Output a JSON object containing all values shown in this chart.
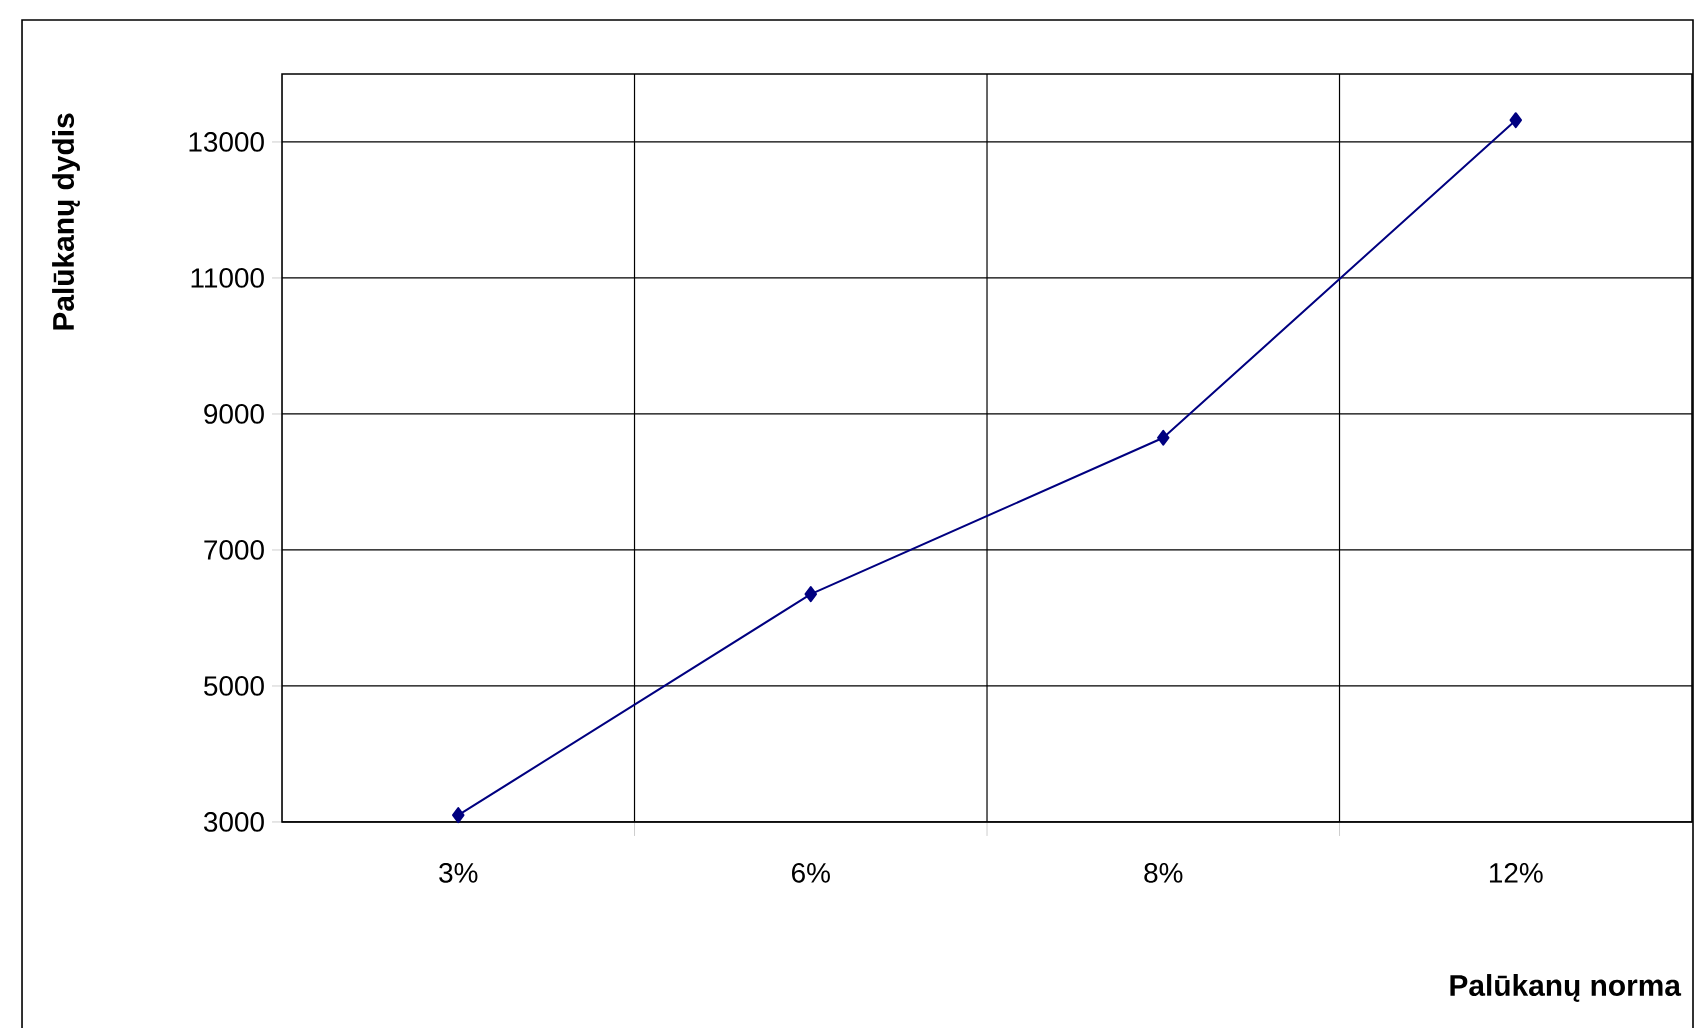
{
  "chart_data": {
    "type": "line",
    "xlabel": "Palūkanų norma",
    "ylabel": "Palūkanų dydis",
    "categories": [
      "3%",
      "6%",
      "8%",
      "12%"
    ],
    "series": [
      {
        "color": "#000080",
        "values": [
          3100,
          6350,
          8650,
          13320
        ]
      }
    ],
    "ylim": [
      3000,
      14000
    ],
    "yticks": [
      3000,
      5000,
      7000,
      9000,
      11000,
      13000
    ],
    "grid": true,
    "marker": "diamond",
    "line_style": "solid",
    "legend": false
  }
}
